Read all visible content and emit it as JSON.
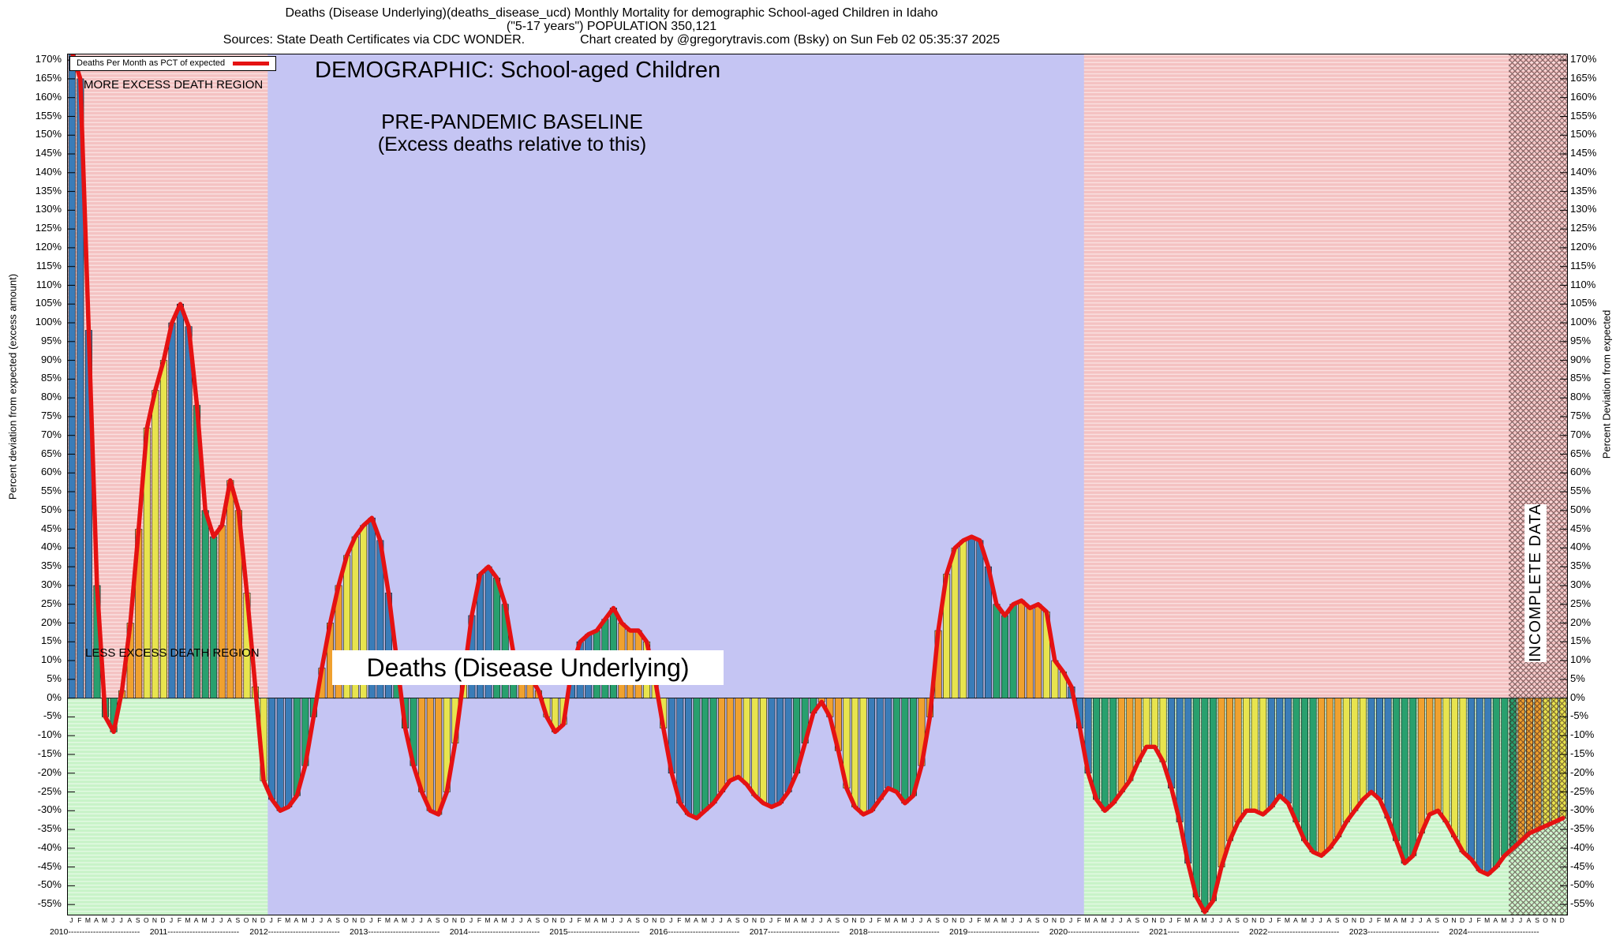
{
  "title": {
    "line1": "Deaths (Disease Underlying)(deaths_disease_ucd) Monthly Mortality for demographic School-aged Children in Idaho",
    "line2": "(\"5-17 years\") POPULATION 350,121",
    "sources": "Sources: State Death Certificates via CDC WONDER.",
    "credit": "Chart created by @gregorytravis.com (Bsky) on Sun Feb 02 05:35:37 2025"
  },
  "axes": {
    "left_label": "Percent deviation from expected (excess amount)",
    "right_label": "Percent Deviation from expected"
  },
  "legend": {
    "label": "Deaths Per Month as PCT of expected"
  },
  "annotations": {
    "more_region": "MORE EXCESS DEATH REGION",
    "less_region": "LESS EXCESS DEATH REGION",
    "demographic": "DEMOGRAPHIC: School-aged Children",
    "baseline_line1": "PRE-PANDEMIC BASELINE",
    "baseline_line2": "(Excess deaths relative to this)",
    "bottom_box": "Deaths (Disease Underlying)",
    "incomplete": "INCOMPLETE DATA"
  },
  "chart_data": {
    "type": "bar",
    "title": "DEMOGRAPHIC: School-aged Children",
    "subtitle": "Deaths (Disease Underlying) — monthly percent deviation from expected",
    "ylabel": "Percent deviation from expected (excess amount)",
    "y2label": "Percent Deviation from expected",
    "ylim": [
      -57.7,
      171.5
    ],
    "ytick_max": 170,
    "ytick_min": -55,
    "ytick_step": 5,
    "grid": "horizontal-1pct-stripes",
    "legend_position": "top-left",
    "month_letters": "JFMAMJJASOND",
    "years": [
      2010,
      2011,
      2012,
      2013,
      2014,
      2015,
      2016,
      2017,
      2018,
      2019,
      2020,
      2021,
      2022,
      2023,
      2024
    ],
    "series": [
      {
        "name": "Deaths Per Month as PCT of expected",
        "values_by_year": [
          [
            172,
            165,
            98,
            30,
            -5,
            -9,
            2,
            20,
            45,
            72,
            82,
            90
          ],
          [
            100,
            105,
            99,
            78,
            50,
            43,
            46,
            58,
            50,
            28,
            3,
            -22
          ],
          [
            -27,
            -30,
            -29,
            -26,
            -18,
            -5,
            8,
            20,
            30,
            38,
            43,
            46
          ],
          [
            48,
            42,
            28,
            10,
            -8,
            -18,
            -25,
            -30,
            -31,
            -25,
            -12,
            5
          ],
          [
            22,
            33,
            35,
            32,
            25,
            12,
            8,
            6,
            2,
            -5,
            -9,
            -7
          ],
          [
            8,
            15,
            17,
            18,
            21,
            24,
            20,
            18,
            18,
            15,
            5,
            -8
          ],
          [
            -20,
            -28,
            -31,
            -32,
            -30,
            -28,
            -25,
            -22,
            -21,
            -23,
            -26,
            -28
          ],
          [
            -29,
            -28,
            -25,
            -20,
            -12,
            -4,
            -1,
            -5,
            -14,
            -24,
            -29,
            -31
          ],
          [
            -30,
            -27,
            -24,
            -25,
            -28,
            -26,
            -18,
            -5,
            18,
            33,
            40,
            42
          ],
          [
            43,
            42,
            35,
            25,
            22,
            25,
            26,
            24,
            25,
            23,
            10,
            7
          ],
          [
            3,
            -8,
            -20,
            -27,
            -30,
            -28,
            -25,
            -22,
            -17,
            -13,
            -13,
            -17
          ],
          [
            -24,
            -33,
            -44,
            -53,
            -57,
            -54,
            -45,
            -38,
            -33,
            -30,
            -30,
            -31
          ],
          [
            -29,
            -26,
            -28,
            -33,
            -38,
            -41,
            -42,
            -40,
            -37,
            -33,
            -30,
            -27
          ],
          [
            -25,
            -27,
            -32,
            -38,
            -44,
            -42,
            -36,
            -31,
            -30,
            -33,
            -37,
            -41
          ],
          [
            -43,
            -46,
            -47,
            -45,
            -42,
            -40,
            -38,
            -36,
            -35,
            -34,
            -33,
            -32
          ]
        ]
      }
    ],
    "regions": {
      "pre_pandemic": {
        "label": "PRE-PANDEMIC BASELINE (Excess deaths relative to this)",
        "start_index": 24,
        "end_index": 122
      },
      "more_excess": {
        "label": "MORE EXCESS DEATH REGION",
        "area": "above 0%"
      },
      "less_excess": {
        "label": "LESS EXCESS DEATH REGION",
        "area": "below 0%"
      },
      "incomplete": {
        "label": "INCOMPLETE DATA",
        "start_index": 173
      }
    },
    "colors": {
      "line": "#e51212",
      "q1_bar": "#3a7cb8",
      "q2_bar": "#28a06e",
      "q3_bar": "#f0a12f",
      "q4_bar": "#e8e44e",
      "more_region": "#f4c2c2",
      "less_region": "#c8f3c8",
      "baseline_region": "#c5c5f3"
    }
  }
}
